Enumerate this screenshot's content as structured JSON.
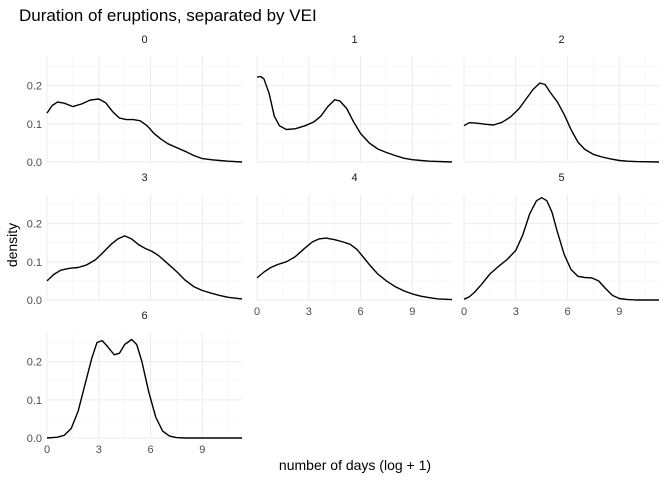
{
  "chart_data": {
    "type": "line",
    "title": "Duration of eruptions, separated by VEI",
    "xlabel": "number of days (log + 1)",
    "ylabel": "density",
    "xlim": [
      0,
      11.3
    ],
    "ylim": [
      0,
      0.275
    ],
    "x_ticks": [
      0,
      3,
      6,
      9
    ],
    "y_ticks": [
      0.0,
      0.1,
      0.2
    ],
    "x_tick_labels": [
      "0",
      "3",
      "6",
      "9"
    ],
    "y_tick_labels": [
      "0.0",
      "0.1",
      "0.2"
    ],
    "grid": true,
    "facets": [
      {
        "label": "0",
        "points": [
          [
            0,
            0.128
          ],
          [
            0.3,
            0.148
          ],
          [
            0.6,
            0.157
          ],
          [
            1.0,
            0.154
          ],
          [
            1.5,
            0.145
          ],
          [
            2.0,
            0.152
          ],
          [
            2.5,
            0.162
          ],
          [
            3.0,
            0.165
          ],
          [
            3.4,
            0.155
          ],
          [
            3.8,
            0.132
          ],
          [
            4.2,
            0.115
          ],
          [
            4.6,
            0.111
          ],
          [
            5.0,
            0.111
          ],
          [
            5.4,
            0.108
          ],
          [
            5.8,
            0.095
          ],
          [
            6.2,
            0.075
          ],
          [
            6.6,
            0.06
          ],
          [
            7.0,
            0.048
          ],
          [
            7.5,
            0.038
          ],
          [
            8.0,
            0.028
          ],
          [
            8.5,
            0.017
          ],
          [
            9.0,
            0.009
          ],
          [
            9.5,
            0.006
          ],
          [
            10.0,
            0.004
          ],
          [
            10.5,
            0.002
          ],
          [
            11.3,
            0.0
          ]
        ]
      },
      {
        "label": "1",
        "points": [
          [
            0,
            0.222
          ],
          [
            0.2,
            0.224
          ],
          [
            0.4,
            0.218
          ],
          [
            0.7,
            0.18
          ],
          [
            1.0,
            0.12
          ],
          [
            1.3,
            0.095
          ],
          [
            1.7,
            0.085
          ],
          [
            2.2,
            0.087
          ],
          [
            2.8,
            0.095
          ],
          [
            3.3,
            0.105
          ],
          [
            3.7,
            0.12
          ],
          [
            4.1,
            0.145
          ],
          [
            4.5,
            0.163
          ],
          [
            4.8,
            0.16
          ],
          [
            5.2,
            0.14
          ],
          [
            5.6,
            0.105
          ],
          [
            6.0,
            0.075
          ],
          [
            6.5,
            0.05
          ],
          [
            7.0,
            0.034
          ],
          [
            7.5,
            0.025
          ],
          [
            8.0,
            0.017
          ],
          [
            8.5,
            0.01
          ],
          [
            9.0,
            0.006
          ],
          [
            9.5,
            0.004
          ],
          [
            10.0,
            0.002
          ],
          [
            11.3,
            0.0
          ]
        ]
      },
      {
        "label": "2",
        "points": [
          [
            0,
            0.095
          ],
          [
            0.3,
            0.103
          ],
          [
            0.7,
            0.102
          ],
          [
            1.2,
            0.099
          ],
          [
            1.7,
            0.097
          ],
          [
            2.2,
            0.104
          ],
          [
            2.7,
            0.118
          ],
          [
            3.2,
            0.14
          ],
          [
            3.6,
            0.165
          ],
          [
            4.0,
            0.19
          ],
          [
            4.4,
            0.207
          ],
          [
            4.7,
            0.203
          ],
          [
            5.0,
            0.182
          ],
          [
            5.4,
            0.158
          ],
          [
            5.8,
            0.125
          ],
          [
            6.2,
            0.085
          ],
          [
            6.6,
            0.052
          ],
          [
            7.0,
            0.033
          ],
          [
            7.5,
            0.02
          ],
          [
            8.0,
            0.013
          ],
          [
            8.5,
            0.008
          ],
          [
            9.0,
            0.004
          ],
          [
            9.5,
            0.002
          ],
          [
            10.0,
            0.001
          ],
          [
            11.3,
            0.0
          ]
        ]
      },
      {
        "label": "3",
        "points": [
          [
            0,
            0.05
          ],
          [
            0.4,
            0.067
          ],
          [
            0.8,
            0.078
          ],
          [
            1.3,
            0.083
          ],
          [
            1.8,
            0.085
          ],
          [
            2.3,
            0.092
          ],
          [
            2.8,
            0.105
          ],
          [
            3.2,
            0.122
          ],
          [
            3.7,
            0.145
          ],
          [
            4.1,
            0.16
          ],
          [
            4.5,
            0.168
          ],
          [
            4.9,
            0.16
          ],
          [
            5.3,
            0.145
          ],
          [
            5.7,
            0.135
          ],
          [
            6.1,
            0.127
          ],
          [
            6.5,
            0.115
          ],
          [
            7.0,
            0.095
          ],
          [
            7.5,
            0.075
          ],
          [
            8.0,
            0.052
          ],
          [
            8.5,
            0.035
          ],
          [
            9.0,
            0.025
          ],
          [
            9.5,
            0.018
          ],
          [
            10.0,
            0.012
          ],
          [
            10.5,
            0.007
          ],
          [
            11.3,
            0.003
          ]
        ]
      },
      {
        "label": "4",
        "points": [
          [
            0,
            0.058
          ],
          [
            0.4,
            0.073
          ],
          [
            0.8,
            0.085
          ],
          [
            1.2,
            0.093
          ],
          [
            1.7,
            0.1
          ],
          [
            2.2,
            0.113
          ],
          [
            2.7,
            0.133
          ],
          [
            3.2,
            0.152
          ],
          [
            3.6,
            0.16
          ],
          [
            4.0,
            0.162
          ],
          [
            4.5,
            0.158
          ],
          [
            5.0,
            0.152
          ],
          [
            5.4,
            0.146
          ],
          [
            5.8,
            0.132
          ],
          [
            6.2,
            0.11
          ],
          [
            6.6,
            0.088
          ],
          [
            7.0,
            0.068
          ],
          [
            7.5,
            0.05
          ],
          [
            8.0,
            0.035
          ],
          [
            8.5,
            0.024
          ],
          [
            9.0,
            0.016
          ],
          [
            9.5,
            0.01
          ],
          [
            10.0,
            0.006
          ],
          [
            10.5,
            0.003
          ],
          [
            11.3,
            0.001
          ]
        ]
      },
      {
        "label": "5",
        "points": [
          [
            0,
            0.002
          ],
          [
            0.3,
            0.008
          ],
          [
            0.6,
            0.02
          ],
          [
            1.0,
            0.04
          ],
          [
            1.5,
            0.068
          ],
          [
            2.0,
            0.088
          ],
          [
            2.5,
            0.106
          ],
          [
            3.0,
            0.13
          ],
          [
            3.4,
            0.17
          ],
          [
            3.8,
            0.225
          ],
          [
            4.2,
            0.26
          ],
          [
            4.5,
            0.268
          ],
          [
            4.8,
            0.26
          ],
          [
            5.1,
            0.23
          ],
          [
            5.4,
            0.18
          ],
          [
            5.8,
            0.12
          ],
          [
            6.2,
            0.08
          ],
          [
            6.6,
            0.062
          ],
          [
            7.0,
            0.059
          ],
          [
            7.4,
            0.058
          ],
          [
            7.8,
            0.05
          ],
          [
            8.2,
            0.03
          ],
          [
            8.6,
            0.012
          ],
          [
            9.0,
            0.004
          ],
          [
            9.5,
            0.001
          ],
          [
            10.0,
            0.0
          ],
          [
            11.3,
            0.0
          ]
        ]
      },
      {
        "label": "6",
        "points": [
          [
            0,
            0.0
          ],
          [
            0.6,
            0.002
          ],
          [
            1.0,
            0.007
          ],
          [
            1.4,
            0.025
          ],
          [
            1.8,
            0.07
          ],
          [
            2.2,
            0.14
          ],
          [
            2.6,
            0.21
          ],
          [
            2.9,
            0.25
          ],
          [
            3.2,
            0.255
          ],
          [
            3.5,
            0.24
          ],
          [
            3.9,
            0.218
          ],
          [
            4.2,
            0.222
          ],
          [
            4.5,
            0.245
          ],
          [
            4.9,
            0.258
          ],
          [
            5.2,
            0.245
          ],
          [
            5.5,
            0.2
          ],
          [
            5.9,
            0.12
          ],
          [
            6.3,
            0.055
          ],
          [
            6.7,
            0.018
          ],
          [
            7.1,
            0.005
          ],
          [
            7.5,
            0.001
          ],
          [
            8.0,
            0.0
          ],
          [
            11.3,
            0.0
          ]
        ]
      }
    ]
  }
}
